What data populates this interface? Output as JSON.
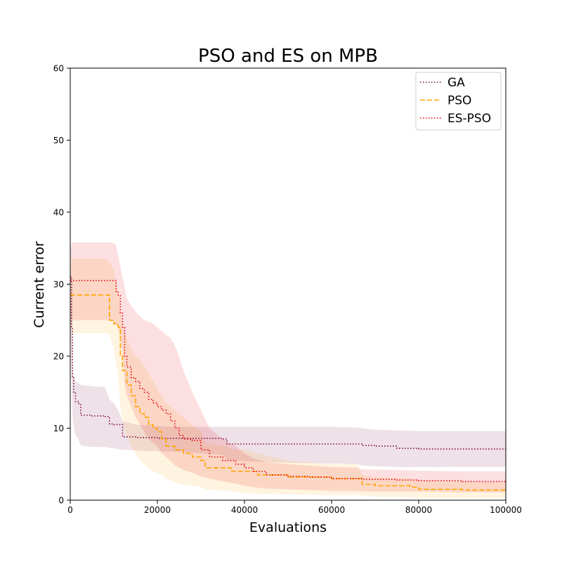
{
  "chart_data": {
    "type": "line",
    "title": "PSO and ES on MPB",
    "xlabel": "Evaluations",
    "ylabel": "Current error",
    "xlim": [
      0,
      100000
    ],
    "ylim": [
      0,
      60
    ],
    "xticks": [
      0,
      20000,
      40000,
      60000,
      80000,
      100000
    ],
    "yticks": [
      0,
      10,
      20,
      30,
      40,
      50,
      60
    ],
    "grid": false,
    "legend_position": "top-right",
    "series": [
      {
        "name": "GA",
        "color": "#7b0a3e",
        "style": "dotted",
        "x": [
          0,
          300,
          500,
          800,
          1200,
          1800,
          2400,
          3000,
          5000,
          8000,
          9000,
          10000,
          11000,
          12000,
          15000,
          20000,
          25000,
          30000,
          35000,
          36000,
          40000,
          50000,
          60000,
          66000,
          67000,
          70000,
          75000,
          80000,
          90000,
          100000
        ],
        "y": [
          31,
          24,
          17,
          15,
          13.7,
          13.4,
          11.8,
          11.8,
          11.7,
          11.6,
          10.6,
          10.5,
          10.5,
          8.8,
          8.7,
          8.6,
          8.6,
          8.6,
          8.5,
          7.8,
          7.8,
          7.8,
          7.8,
          7.8,
          7.6,
          7.5,
          7.2,
          7.1,
          7.1,
          7.1
        ],
        "band_lower": [
          27,
          17,
          12,
          10,
          9,
          8.5,
          7.6,
          7.5,
          7.4,
          7.4,
          7.3,
          7.2,
          7.1,
          7,
          6.9,
          6.8,
          6.7,
          6.5,
          6.3,
          5.6,
          5.4,
          5.2,
          5.1,
          5,
          4.8,
          4.7,
          4.6,
          4.6,
          4.6,
          4.6
        ],
        "band_upper": [
          33,
          25,
          19,
          17,
          16.5,
          16.3,
          16,
          16,
          15.8,
          15.7,
          14,
          13.5,
          12.5,
          11,
          10.5,
          10.3,
          10.2,
          10.2,
          10.2,
          10.2,
          10.2,
          10.2,
          10.2,
          10.1,
          10,
          9.8,
          9.7,
          9.6,
          9.6,
          9.6
        ]
      },
      {
        "name": "PSO",
        "color": "#ffa500",
        "style": "dashed",
        "x": [
          0,
          300,
          8500,
          9000,
          10000,
          11000,
          11500,
          12000,
          13000,
          14000,
          15000,
          16000,
          17000,
          18000,
          19000,
          20000,
          21000,
          22000,
          24000,
          26000,
          28000,
          30000,
          31000,
          36000,
          37000,
          40000,
          43000,
          50000,
          60000,
          66000,
          67000,
          70000,
          78000,
          80000,
          90000,
          100000
        ],
        "y": [
          28.5,
          28.5,
          28.5,
          25,
          24.5,
          24,
          20,
          18,
          16,
          14.5,
          13,
          12,
          11.5,
          10.5,
          10,
          9.5,
          8.5,
          7.5,
          7,
          6.5,
          6,
          5.5,
          4.5,
          4.5,
          4,
          4,
          3.5,
          3.2,
          3,
          3,
          2.2,
          2,
          1.8,
          1.5,
          1.4,
          1.2
        ],
        "band_lower": [
          25,
          23.2,
          23.2,
          23,
          21,
          17,
          13,
          11,
          9,
          7.5,
          6.5,
          5.5,
          5,
          4.5,
          4,
          3.8,
          3.5,
          3,
          2.5,
          2.2,
          2,
          1.8,
          1.5,
          1.3,
          1.2,
          1,
          0.9,
          0.8,
          0.7,
          0.7,
          0.6,
          0.5,
          0.4,
          0.3,
          0.3,
          0.3
        ],
        "band_upper": [
          32,
          33.5,
          33.5,
          33,
          32,
          29,
          27,
          24.5,
          22.5,
          21,
          20,
          19.5,
          18.5,
          17.5,
          16.5,
          15.5,
          14.5,
          13.5,
          12.5,
          11.5,
          10.5,
          9.5,
          8,
          7.5,
          7,
          7,
          6.5,
          5.5,
          5,
          5,
          3.5,
          3.2,
          3,
          2.8,
          2.6,
          2.5
        ]
      },
      {
        "name": "ES-PSO",
        "color": "#e8000b",
        "style": "dotted",
        "x": [
          0,
          300,
          9500,
          10500,
          11000,
          11500,
          12000,
          12500,
          13000,
          14000,
          15000,
          16000,
          17000,
          18000,
          19000,
          20000,
          21000,
          22000,
          23000,
          24000,
          25000,
          26000,
          28000,
          30000,
          32000,
          35000,
          38000,
          40000,
          42000,
          45000,
          50000,
          55000,
          60000,
          66000,
          67000,
          75000,
          80000,
          90000,
          95000,
          100000
        ],
        "y": [
          30.5,
          30.5,
          30.5,
          29,
          28.5,
          26,
          24,
          20,
          18.5,
          17,
          16.5,
          15.5,
          15,
          14,
          13.5,
          13,
          12.5,
          12,
          11,
          10,
          9,
          8.5,
          8.3,
          7,
          6,
          5.5,
          5,
          4.5,
          4,
          3.5,
          3.3,
          3.2,
          3,
          3,
          2.9,
          2.8,
          2.7,
          2.6,
          2.6,
          2.5
        ],
        "band_lower": [
          26,
          25,
          25,
          24.5,
          24,
          22.5,
          20,
          16,
          14.5,
          13,
          11.5,
          10.5,
          9.5,
          8.5,
          8,
          7.5,
          6.5,
          6,
          5.5,
          4.8,
          4.5,
          4.2,
          3.8,
          3.3,
          3,
          2.6,
          2.3,
          2,
          1.8,
          1.6,
          1.5,
          1.4,
          1.3,
          1.3,
          1.2,
          1.2,
          1.2,
          1.1,
          1.1,
          1.1
        ],
        "band_upper": [
          34,
          35.8,
          35.8,
          35.5,
          34,
          32.5,
          31,
          29.5,
          28,
          27,
          26.2,
          25.5,
          25,
          24.8,
          24.5,
          24,
          23.5,
          23,
          22.5,
          21.5,
          20,
          18,
          15,
          12.5,
          10,
          8.5,
          7.5,
          6.5,
          5.8,
          5.3,
          5,
          4.8,
          4.6,
          4.5,
          4.3,
          4.2,
          4.1,
          4,
          4,
          4
        ]
      }
    ]
  }
}
